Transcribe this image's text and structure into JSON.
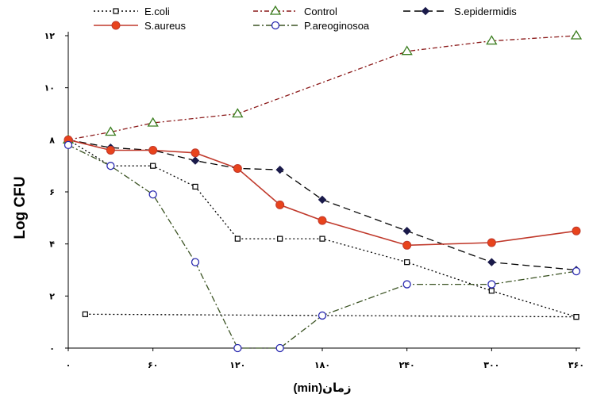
{
  "chart_data": {
    "type": "line",
    "title": "",
    "xlabel": "زمان(min)",
    "ylabel": "Log CFU",
    "xlim": [
      0,
      360
    ],
    "ylim": [
      0,
      12
    ],
    "x_ticks": [
      0,
      60,
      120,
      180,
      240,
      300,
      360
    ],
    "y_ticks": [
      0,
      2,
      4,
      6,
      8,
      10,
      12
    ],
    "x_tick_labels": [
      "۰",
      "۶۰",
      "۱۲۰",
      "۱۸۰",
      "۲۴۰",
      "۳۰۰",
      "۳۶۰"
    ],
    "y_tick_labels": [
      "۰",
      "۲",
      "۴",
      "۶",
      "۸",
      "۱۰",
      "۱۲"
    ],
    "grid": false,
    "legend_position": "top",
    "series": [
      {
        "name": "E.coli",
        "color": "#000000",
        "dash": "2,3",
        "marker": "square-open",
        "points": [
          [
            0,
            8.0
          ],
          [
            30,
            7.0
          ],
          [
            60,
            7.0
          ],
          [
            90,
            6.2
          ],
          [
            120,
            4.2
          ],
          [
            150,
            4.2
          ],
          [
            180,
            4.2
          ],
          [
            240,
            3.3
          ],
          [
            300,
            2.2
          ],
          [
            360,
            1.2
          ]
        ]
      },
      {
        "name": "E.coli",
        "color": "#000000",
        "dash": "2,3",
        "marker": "square-open",
        "points": [
          [
            12,
            1.3
          ],
          [
            360,
            1.2
          ]
        ]
      },
      {
        "name": "Control",
        "color": "#8b1a1a",
        "dash": "6,3,2,3",
        "marker": "triangle-open",
        "points": [
          [
            0,
            8.0
          ],
          [
            30,
            8.3
          ],
          [
            60,
            8.65
          ],
          [
            120,
            9.0
          ],
          [
            240,
            11.4
          ],
          [
            300,
            11.8
          ],
          [
            360,
            12.0
          ]
        ]
      },
      {
        "name": "S.epidermidis",
        "color": "#000000",
        "dash": "9,5",
        "marker": "diamond-filled",
        "points": [
          [
            0,
            8.0
          ],
          [
            30,
            7.7
          ],
          [
            60,
            7.6
          ],
          [
            90,
            7.2
          ],
          [
            120,
            6.9
          ],
          [
            150,
            6.85
          ],
          [
            180,
            5.7
          ],
          [
            240,
            4.5
          ],
          [
            300,
            3.3
          ],
          [
            360,
            3.0
          ]
        ]
      },
      {
        "name": "S.aureus",
        "color": "#c0392b",
        "dash": "",
        "marker": "circle-filled",
        "points": [
          [
            0,
            8.0
          ],
          [
            30,
            7.6
          ],
          [
            60,
            7.6
          ],
          [
            90,
            7.5
          ],
          [
            120,
            6.9
          ],
          [
            150,
            5.5
          ],
          [
            180,
            4.9
          ],
          [
            240,
            3.95
          ],
          [
            300,
            4.05
          ],
          [
            360,
            4.5
          ]
        ]
      },
      {
        "name": "P.areoginosoa",
        "color": "#3b5323",
        "dash": "8,3,2,3",
        "marker": "circle-open",
        "points": [
          [
            0,
            7.8
          ],
          [
            30,
            7.0
          ],
          [
            60,
            5.9
          ],
          [
            90,
            3.3
          ],
          [
            120,
            0.0
          ],
          [
            150,
            0.0
          ],
          [
            180,
            1.25
          ],
          [
            240,
            2.45
          ],
          [
            300,
            2.45
          ],
          [
            360,
            2.95
          ]
        ]
      }
    ]
  },
  "legend": {
    "items": [
      {
        "name": "E.coli",
        "color": "#000000",
        "dash": "2,3",
        "marker": "square-open"
      },
      {
        "name": "Control",
        "color": "#8b1a1a",
        "dash": "6,3,2,3",
        "marker": "triangle-open"
      },
      {
        "name": "S.epidermidis",
        "color": "#000000",
        "dash": "9,5",
        "marker": "diamond-filled"
      },
      {
        "name": "S.aureus",
        "color": "#c0392b",
        "dash": "",
        "marker": "circle-filled"
      },
      {
        "name": "P.areoginosoa",
        "color": "#3b5323",
        "dash": "8,3,2,3",
        "marker": "circle-open"
      }
    ]
  }
}
